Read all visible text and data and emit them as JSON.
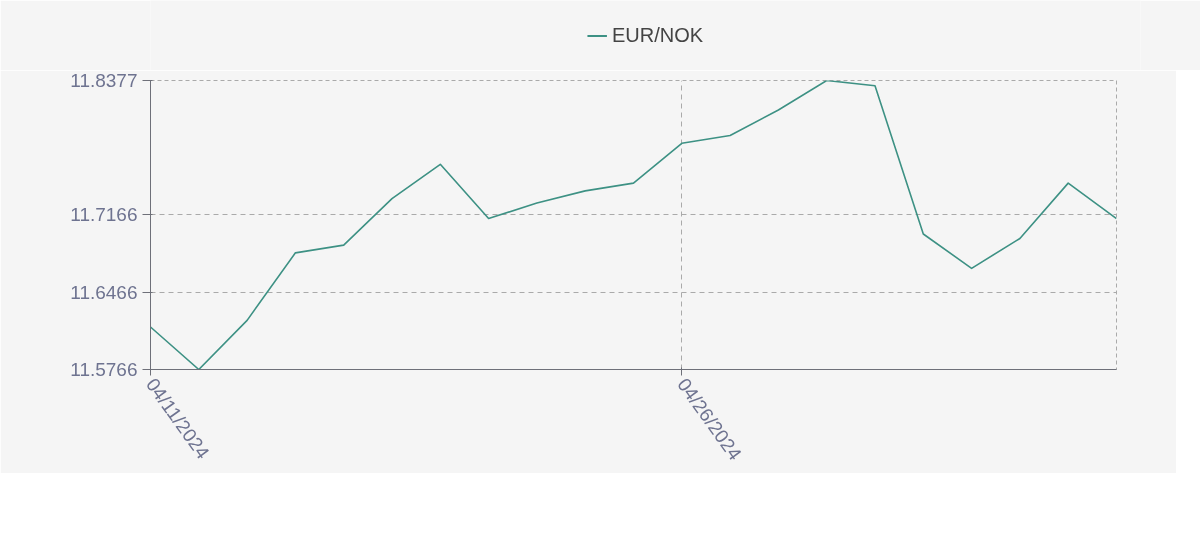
{
  "chart_data": {
    "type": "line",
    "categories": [
      "04/11/2024",
      null,
      null,
      null,
      null,
      null,
      null,
      null,
      null,
      null,
      null,
      "04/26/2024",
      null,
      null,
      null,
      null,
      null,
      null,
      null,
      null,
      null
    ],
    "series": [
      {
        "name": "EUR/NOK",
        "color": "#3d9184",
        "values": [
          11.615,
          11.5766,
          11.621,
          11.682,
          11.689,
          11.731,
          11.762,
          11.713,
          11.727,
          11.738,
          11.745,
          11.781,
          11.788,
          11.811,
          11.8377,
          11.833,
          11.699,
          11.668,
          11.695,
          11.745,
          11.713
        ]
      }
    ],
    "ylim": [
      11.5766,
      11.8377
    ],
    "yticks": [
      11.5766,
      11.6466,
      11.7166,
      11.8377
    ],
    "grid": true,
    "legend": "top",
    "line_style": "solid"
  }
}
